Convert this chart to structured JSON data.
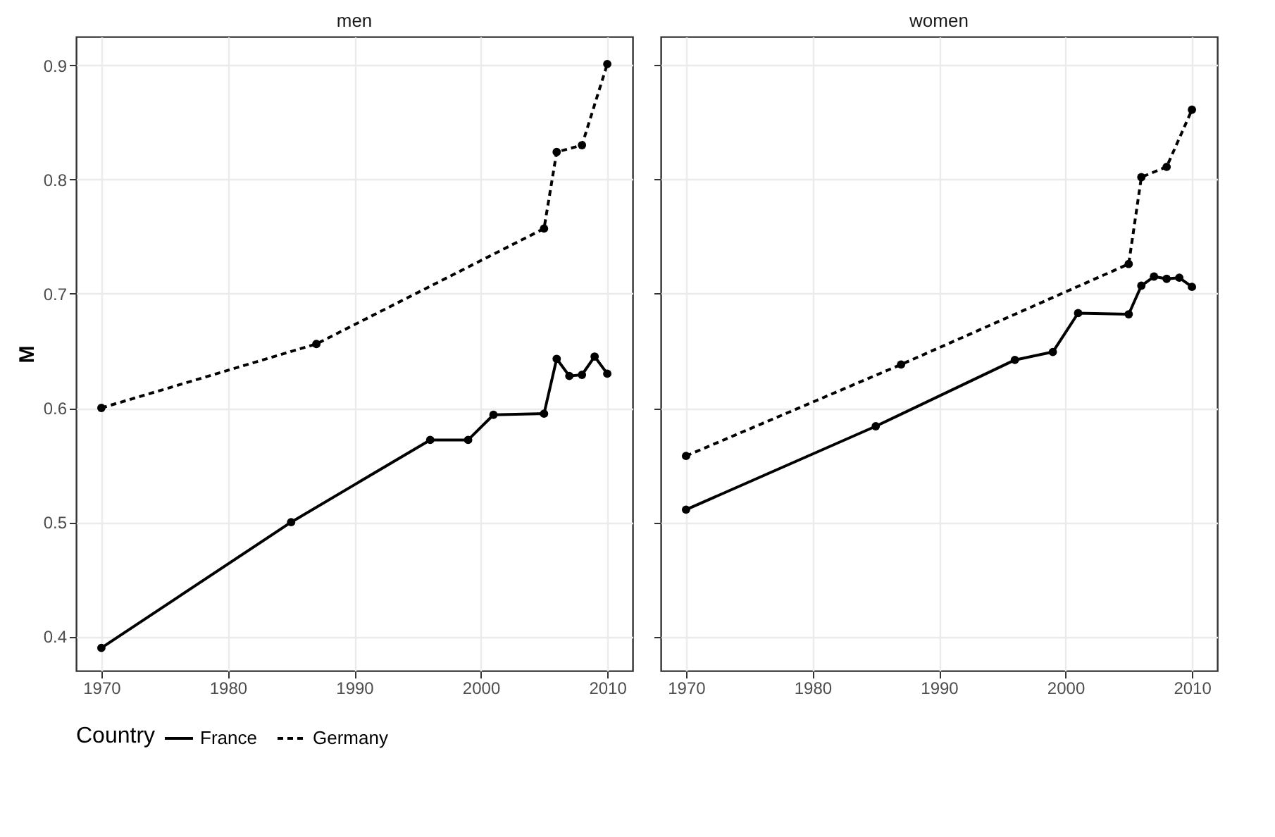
{
  "chart_data": [
    {
      "type": "line",
      "title": "men",
      "ylabel": "M",
      "legend_title": "Country",
      "legend": "bottom",
      "grid": true,
      "marker": "circle",
      "xlim": [
        1968,
        2012
      ],
      "xticks": [
        1970,
        1980,
        1990,
        2000,
        2010
      ],
      "ylim": [
        0.37,
        0.925
      ],
      "yticks": [
        0.4,
        0.5,
        0.6,
        0.7,
        0.8,
        0.9
      ],
      "series": [
        {
          "name": "France",
          "color": "#000000",
          "line_style": "solid",
          "x": [
            1970,
            1985,
            1996,
            1999,
            2001,
            2005,
            2006,
            2007,
            2008,
            2009,
            2010
          ],
          "values": [
            0.39,
            0.5,
            0.572,
            0.572,
            0.594,
            0.595,
            0.643,
            0.628,
            0.629,
            0.645,
            0.63
          ]
        },
        {
          "name": "Germany",
          "color": "#000000",
          "line_style": "dashed",
          "x": [
            1970,
            1987,
            2005,
            2006,
            2008,
            2010
          ],
          "values": [
            0.6,
            0.656,
            0.757,
            0.824,
            0.83,
            0.901
          ]
        }
      ]
    },
    {
      "type": "line",
      "title": "women",
      "tick_labels": "x",
      "legend": "bottom",
      "grid": true,
      "marker": "circle",
      "xlim": [
        1968,
        2012
      ],
      "xticks": [
        1970,
        1980,
        1990,
        2000,
        2010
      ],
      "ylim": [
        0.37,
        0.925
      ],
      "yticks": [
        0.4,
        0.5,
        0.6,
        0.7,
        0.8,
        0.9
      ],
      "series": [
        {
          "name": "France",
          "color": "#000000",
          "line_style": "solid",
          "x": [
            1970,
            1985,
            1996,
            1999,
            2001,
            2005,
            2006,
            2007,
            2008,
            2009,
            2010
          ],
          "values": [
            0.511,
            0.584,
            0.642,
            0.649,
            0.683,
            0.682,
            0.707,
            0.715,
            0.713,
            0.714,
            0.706
          ]
        },
        {
          "name": "Germany",
          "color": "#000000",
          "line_style": "dashed",
          "x": [
            1970,
            1987,
            2005,
            2006,
            2008,
            2010
          ],
          "values": [
            0.558,
            0.638,
            0.726,
            0.802,
            0.811,
            0.861
          ]
        }
      ]
    }
  ]
}
